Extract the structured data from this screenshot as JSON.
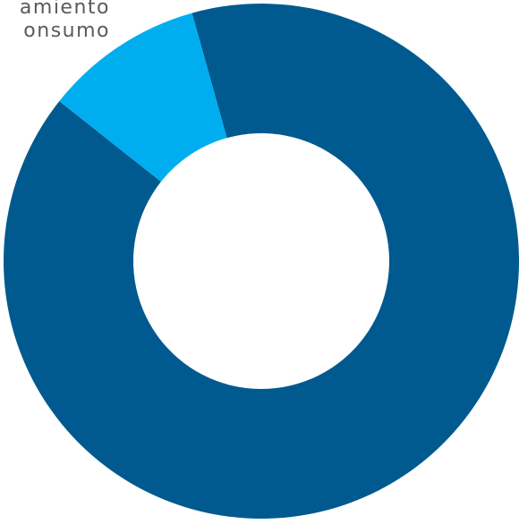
{
  "chart_data": {
    "type": "donut",
    "categories": [
      null,
      [
        "amiento",
        "onsumo"
      ]
    ],
    "values": [
      90,
      10
    ],
    "colors": [
      "#005a8f",
      "#00aeef"
    ]
  }
}
